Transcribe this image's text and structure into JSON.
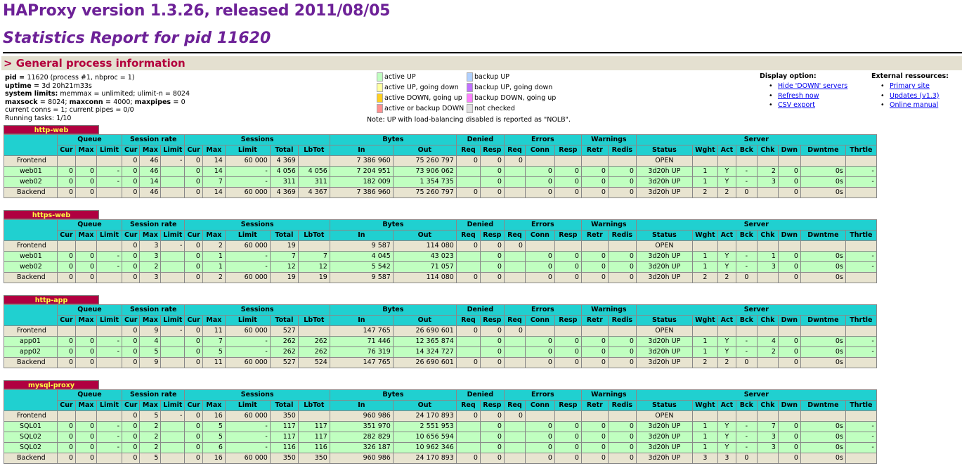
{
  "title": "HAProxy version 1.3.26, released 2011/08/05",
  "subtitle": "Statistics Report for pid 11620",
  "section": "> General process information",
  "proc": {
    "pid_label": "pid = ",
    "pid": "11620 (process #1, nbproc = 1)",
    "uptime_label": "uptime = ",
    "uptime": "3d 20h21m33s",
    "limits_label": "system limits:",
    "limits": " memmax = unlimited; ulimit-n = 8024",
    "maxsock_label": "maxsock = ",
    "maxsock": "8024; ",
    "maxconn_label": "maxconn = ",
    "maxconn": "4000; ",
    "maxpipes_label": "maxpipes = ",
    "maxpipes": "0",
    "current": "current conns = 1; current pipes = 0/0",
    "running": "Running tasks: 1/10"
  },
  "legend": {
    "items": [
      {
        "label": "active UP",
        "color": "#c0ffc0"
      },
      {
        "label": "backup UP",
        "color": "#b0d0ff"
      },
      {
        "label": "active UP, going down",
        "color": "#ffffa0"
      },
      {
        "label": "backup UP, going down",
        "color": "#c070ff"
      },
      {
        "label": "active DOWN, going up",
        "color": "#ffd020"
      },
      {
        "label": "backup DOWN, going up",
        "color": "#ff80ff"
      },
      {
        "label": "active or backup DOWN",
        "color": "#ff9090"
      },
      {
        "label": "not checked",
        "color": "#e0e0e0"
      }
    ],
    "note": "Note: UP with load-balancing disabled is reported as \"NOLB\"."
  },
  "display_options": {
    "title": "Display option:",
    "links": [
      "Hide 'DOWN' servers",
      "Refresh now",
      "CSV export"
    ]
  },
  "external": {
    "title": "External ressources:",
    "links": [
      "Primary site",
      "Updates (v1.3)",
      "Online manual"
    ]
  },
  "headers": {
    "groups": [
      "Queue",
      "Session rate",
      "Sessions",
      "Bytes",
      "Denied",
      "Errors",
      "Warnings",
      "Server"
    ],
    "cols": [
      "Cur",
      "Max",
      "Limit",
      "Cur",
      "Max",
      "Limit",
      "Cur",
      "Max",
      "Limit",
      "Total",
      "LbTot",
      "In",
      "Out",
      "Req",
      "Resp",
      "Req",
      "Conn",
      "Resp",
      "Retr",
      "Redis",
      "Status",
      "Wght",
      "Act",
      "Bck",
      "Chk",
      "Dwn",
      "Dwntme",
      "Thrtle"
    ]
  },
  "proxies": [
    {
      "name": "http-web",
      "rows": [
        [
          "Frontend",
          "",
          "",
          "",
          "0",
          "46",
          "-",
          "0",
          "14",
          "60 000",
          "4 369",
          "",
          "7 386 960",
          "75 260 797",
          "0",
          "0",
          "0",
          "",
          "",
          "",
          "",
          "OPEN",
          "",
          "",
          "",
          "",
          "",
          "",
          ""
        ],
        [
          "web01",
          "0",
          "0",
          "-",
          "0",
          "46",
          "",
          "0",
          "14",
          "-",
          "4 056",
          "4 056",
          "7 204 951",
          "73 906 062",
          "",
          "0",
          "",
          "0",
          "0",
          "0",
          "0",
          "3d20h UP",
          "1",
          "Y",
          "-",
          "2",
          "0",
          "0s",
          "-"
        ],
        [
          "web02",
          "0",
          "0",
          "-",
          "0",
          "14",
          "",
          "0",
          "7",
          "-",
          "311",
          "311",
          "182 009",
          "1 354 735",
          "",
          "0",
          "",
          "0",
          "0",
          "0",
          "0",
          "3d20h UP",
          "1",
          "Y",
          "-",
          "3",
          "0",
          "0s",
          "-"
        ],
        [
          "Backend",
          "0",
          "0",
          "",
          "0",
          "46",
          "",
          "0",
          "14",
          "60 000",
          "4 369",
          "4 367",
          "7 386 960",
          "75 260 797",
          "0",
          "0",
          "",
          "0",
          "0",
          "0",
          "0",
          "3d20h UP",
          "2",
          "2",
          "0",
          "",
          "0",
          "0s",
          ""
        ]
      ]
    },
    {
      "name": "https-web",
      "rows": [
        [
          "Frontend",
          "",
          "",
          "",
          "0",
          "3",
          "-",
          "0",
          "2",
          "60 000",
          "19",
          "",
          "9 587",
          "114 080",
          "0",
          "0",
          "0",
          "",
          "",
          "",
          "",
          "OPEN",
          "",
          "",
          "",
          "",
          "",
          "",
          ""
        ],
        [
          "web01",
          "0",
          "0",
          "-",
          "0",
          "3",
          "",
          "0",
          "1",
          "-",
          "7",
          "7",
          "4 045",
          "43 023",
          "",
          "0",
          "",
          "0",
          "0",
          "0",
          "0",
          "3d20h UP",
          "1",
          "Y",
          "-",
          "1",
          "0",
          "0s",
          "-"
        ],
        [
          "web02",
          "0",
          "0",
          "-",
          "0",
          "2",
          "",
          "0",
          "1",
          "-",
          "12",
          "12",
          "5 542",
          "71 057",
          "",
          "0",
          "",
          "0",
          "0",
          "0",
          "0",
          "3d20h UP",
          "1",
          "Y",
          "-",
          "3",
          "0",
          "0s",
          "-"
        ],
        [
          "Backend",
          "0",
          "0",
          "",
          "0",
          "3",
          "",
          "0",
          "2",
          "60 000",
          "19",
          "19",
          "9 587",
          "114 080",
          "0",
          "0",
          "",
          "0",
          "0",
          "0",
          "0",
          "3d20h UP",
          "2",
          "2",
          "0",
          "",
          "0",
          "0s",
          ""
        ]
      ]
    },
    {
      "name": "http-app",
      "rows": [
        [
          "Frontend",
          "",
          "",
          "",
          "0",
          "9",
          "-",
          "0",
          "11",
          "60 000",
          "527",
          "",
          "147 765",
          "26 690 601",
          "0",
          "0",
          "0",
          "",
          "",
          "",
          "",
          "OPEN",
          "",
          "",
          "",
          "",
          "",
          "",
          ""
        ],
        [
          "app01",
          "0",
          "0",
          "-",
          "0",
          "4",
          "",
          "0",
          "7",
          "-",
          "262",
          "262",
          "71 446",
          "12 365 874",
          "",
          "0",
          "",
          "0",
          "0",
          "0",
          "0",
          "3d20h UP",
          "1",
          "Y",
          "-",
          "4",
          "0",
          "0s",
          "-"
        ],
        [
          "app02",
          "0",
          "0",
          "-",
          "0",
          "5",
          "",
          "0",
          "5",
          "-",
          "262",
          "262",
          "76 319",
          "14 324 727",
          "",
          "0",
          "",
          "0",
          "0",
          "0",
          "0",
          "3d20h UP",
          "1",
          "Y",
          "-",
          "2",
          "0",
          "0s",
          "-"
        ],
        [
          "Backend",
          "0",
          "0",
          "",
          "0",
          "9",
          "",
          "0",
          "11",
          "60 000",
          "527",
          "524",
          "147 765",
          "26 690 601",
          "0",
          "0",
          "",
          "0",
          "0",
          "0",
          "0",
          "3d20h UP",
          "2",
          "2",
          "0",
          "",
          "0",
          "0s",
          ""
        ]
      ]
    },
    {
      "name": "mysql-proxy",
      "rows": [
        [
          "Frontend",
          "",
          "",
          "",
          "0",
          "5",
          "-",
          "0",
          "16",
          "60 000",
          "350",
          "",
          "960 986",
          "24 170 893",
          "0",
          "0",
          "0",
          "",
          "",
          "",
          "",
          "OPEN",
          "",
          "",
          "",
          "",
          "",
          "",
          ""
        ],
        [
          "SQL01",
          "0",
          "0",
          "-",
          "0",
          "2",
          "",
          "0",
          "5",
          "-",
          "117",
          "117",
          "351 970",
          "2 551 953",
          "",
          "0",
          "",
          "0",
          "0",
          "0",
          "0",
          "3d20h UP",
          "1",
          "Y",
          "-",
          "7",
          "0",
          "0s",
          "-"
        ],
        [
          "SQL02",
          "0",
          "0",
          "-",
          "0",
          "2",
          "",
          "0",
          "5",
          "-",
          "117",
          "117",
          "282 829",
          "10 656 594",
          "",
          "0",
          "",
          "0",
          "0",
          "0",
          "0",
          "3d20h UP",
          "1",
          "Y",
          "-",
          "3",
          "0",
          "0s",
          "-"
        ],
        [
          "SQL02",
          "0",
          "0",
          "-",
          "0",
          "2",
          "",
          "0",
          "6",
          "-",
          "116",
          "116",
          "326 187",
          "10 962 346",
          "",
          "0",
          "",
          "0",
          "0",
          "0",
          "0",
          "3d20h UP",
          "1",
          "Y",
          "-",
          "3",
          "0",
          "0s",
          "-"
        ],
        [
          "Backend",
          "0",
          "0",
          "",
          "0",
          "5",
          "",
          "0",
          "16",
          "60 000",
          "350",
          "350",
          "960 986",
          "24 170 893",
          "0",
          "0",
          "",
          "0",
          "0",
          "0",
          "0",
          "3d20h UP",
          "3",
          "3",
          "0",
          "",
          "0",
          "0s",
          ""
        ]
      ]
    }
  ]
}
